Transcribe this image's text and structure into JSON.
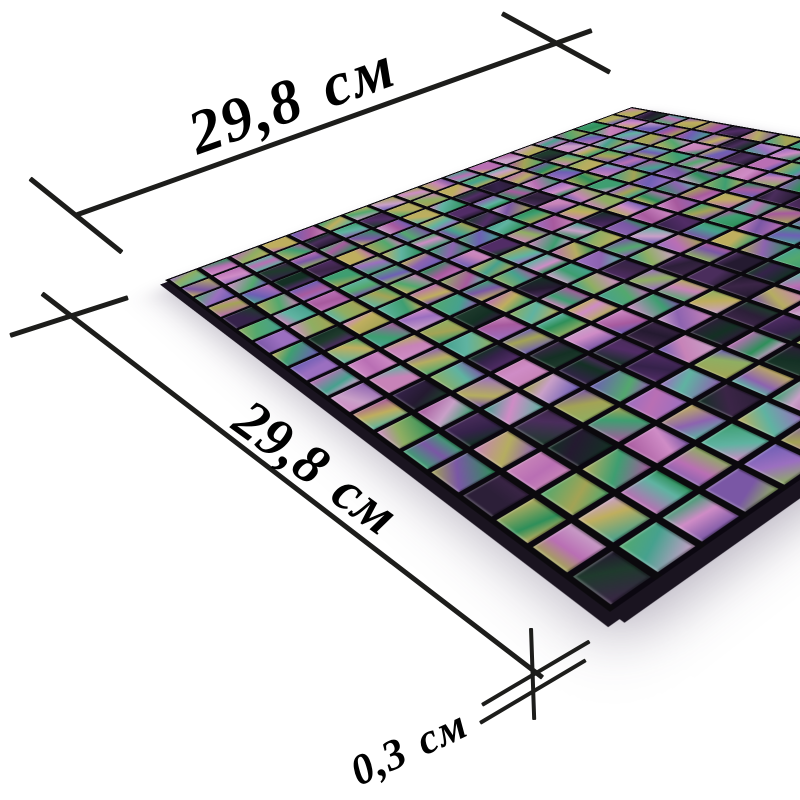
{
  "figure": {
    "background_color": "#ffffff",
    "line_color": "#1d1d1b",
    "label_color": "#000000",
    "labels": {
      "width": "29,8 см",
      "depth": "29,8 см",
      "thickness": "0,3 см"
    }
  },
  "mosaic": {
    "rows": 19,
    "cols": 19,
    "grout_color": "#0b090d",
    "edge_color": "#1a1420",
    "palette": [
      "#b96fb4",
      "#cf8cc6",
      "#a75a9e",
      "#c9a0c8",
      "#8d63b0",
      "#7a57a5",
      "#6e5fb5",
      "#53a86e",
      "#3e9e71",
      "#46a18e",
      "#5fb3a1",
      "#2e8f5a",
      "#a3a355",
      "#b5ad60",
      "#8fae62",
      "#bfae5e",
      "#c783b8",
      "#9b6fc0"
    ],
    "dark_palette": [
      "#3b2547",
      "#4a2d5c",
      "#2c1f38",
      "#1f3a2d",
      "#35224a",
      "#512c66",
      "#143024",
      "#241a30"
    ]
  }
}
